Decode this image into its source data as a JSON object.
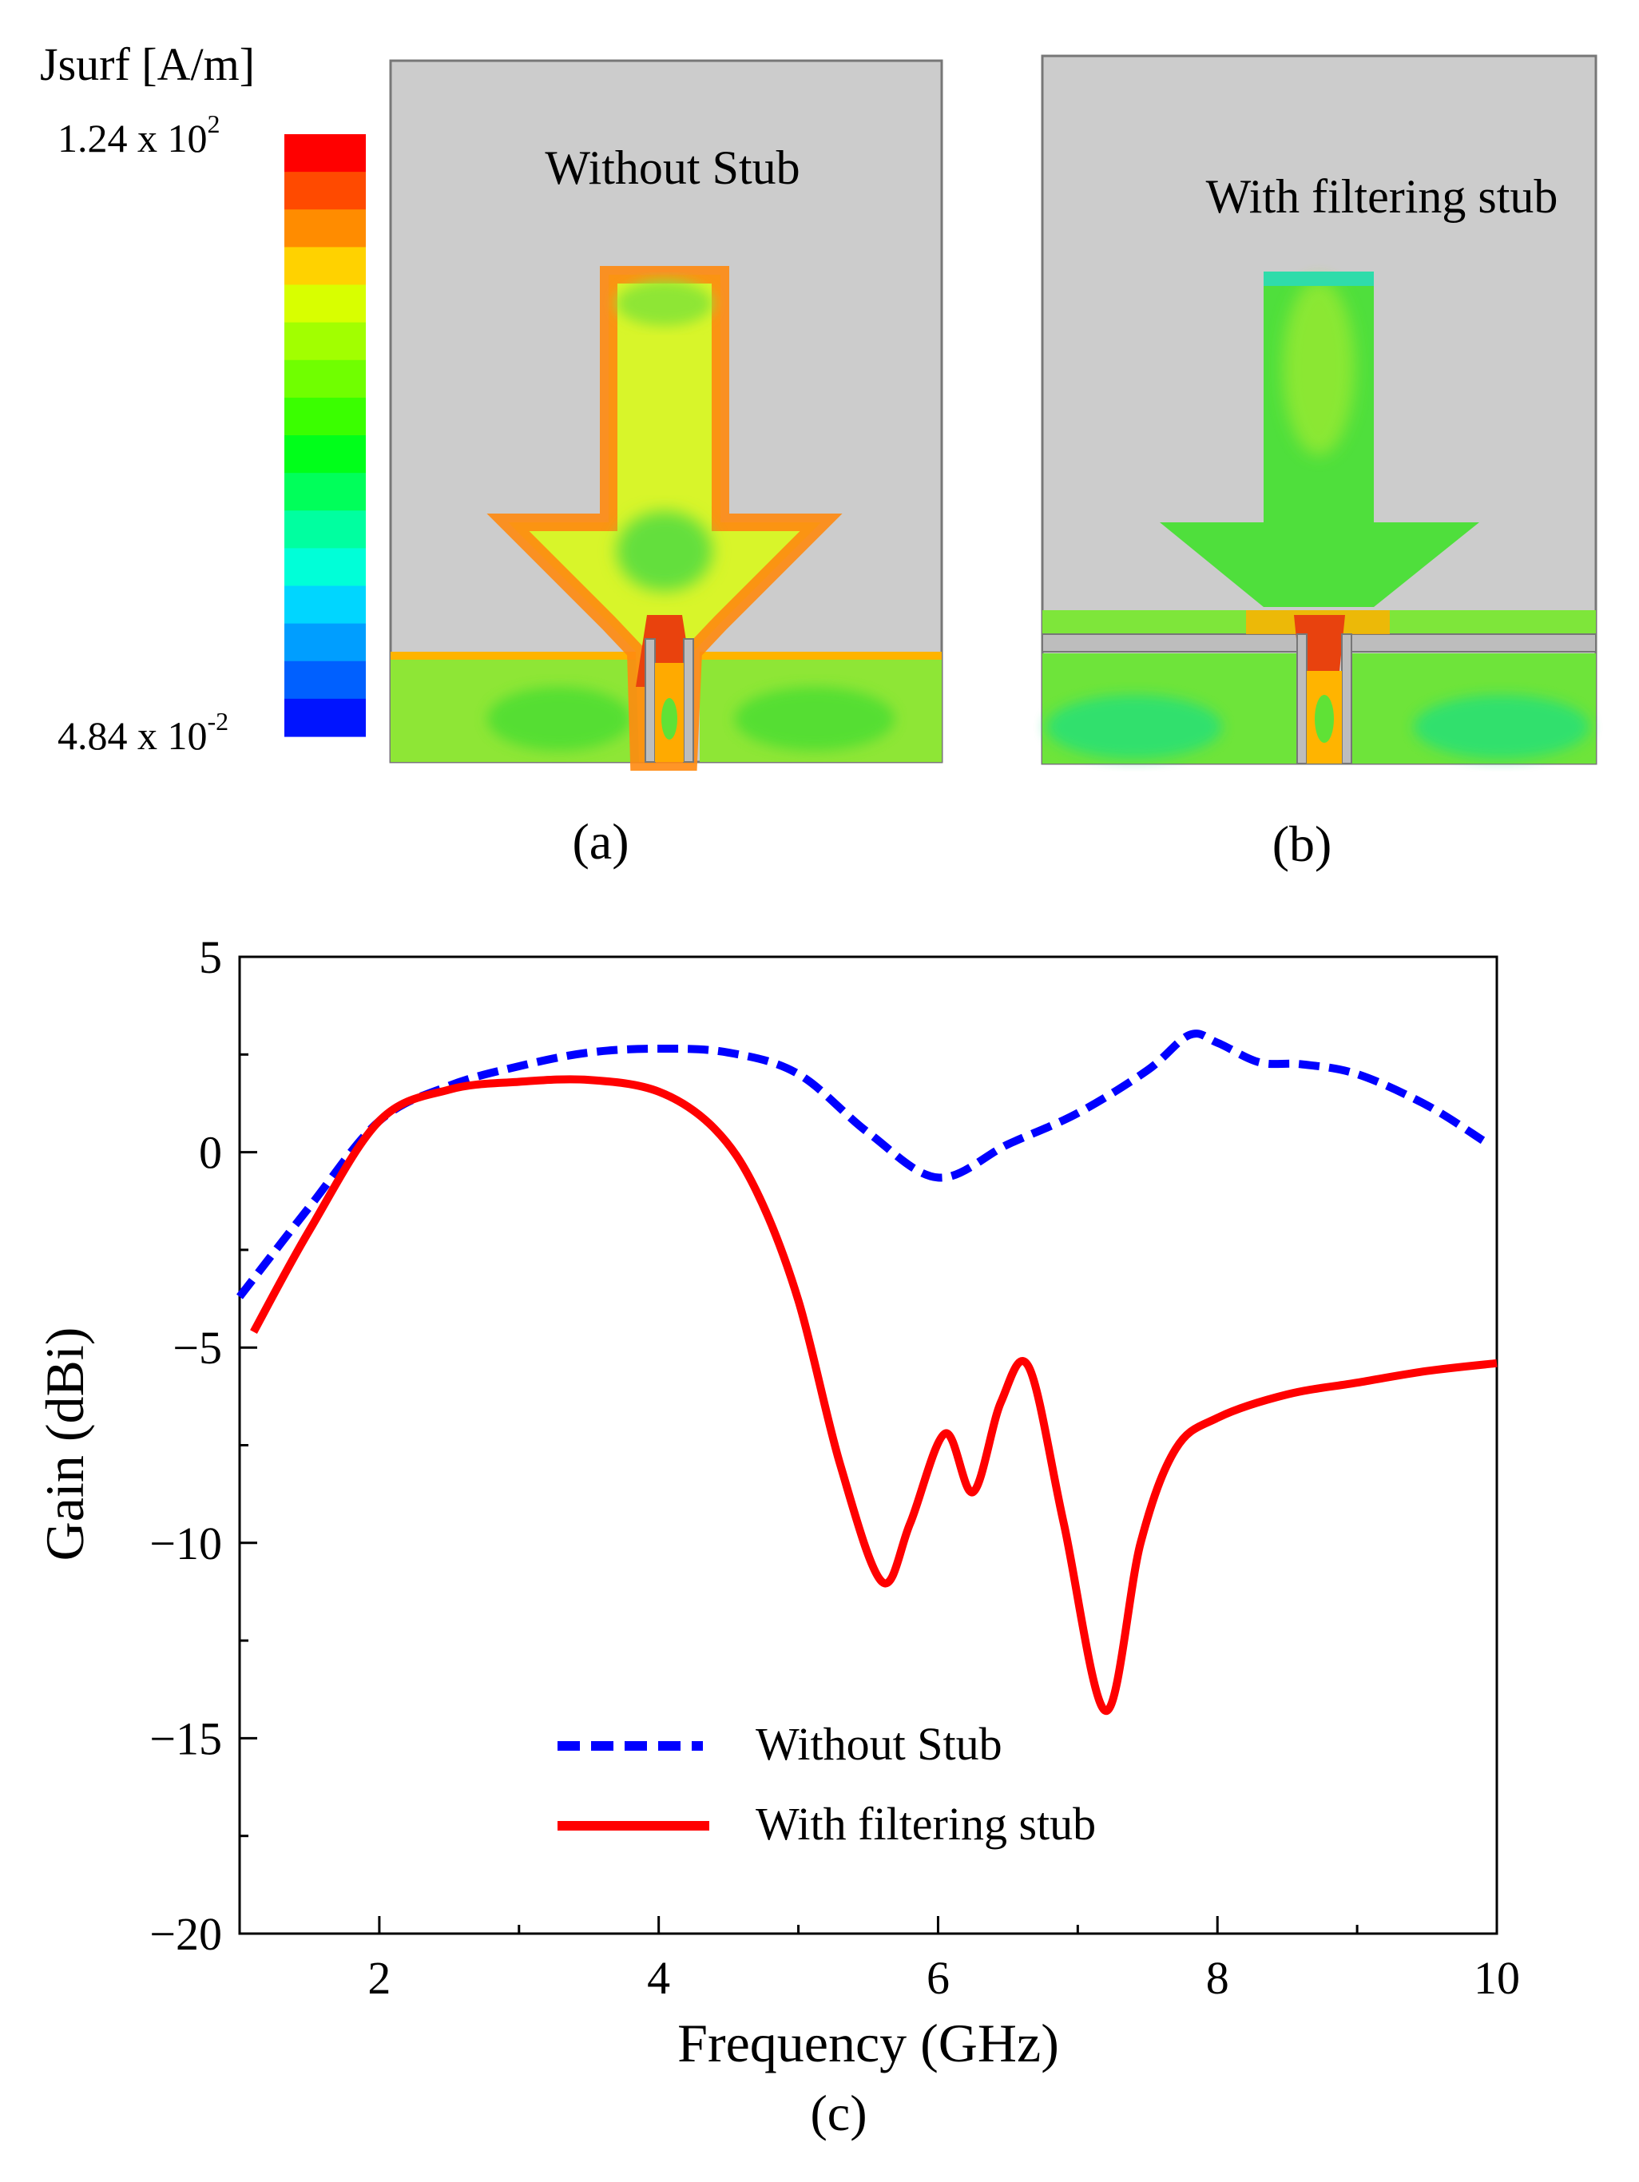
{
  "colorbar": {
    "title": "Jsurf [A/m]",
    "max_mantissa": "1.24 x 10",
    "max_exp": "2",
    "min_mantissa": "4.84 x 10",
    "min_exp": "-2",
    "colors": [
      "#ff0000",
      "#ff4a00",
      "#ff8c00",
      "#ffd200",
      "#d8ff00",
      "#a2ff00",
      "#70ff00",
      "#3aff00",
      "#00ff1a",
      "#00ff5a",
      "#00ffa0",
      "#00ffd8",
      "#00d6ff",
      "#009eff",
      "#0060ff",
      "#0014ff"
    ]
  },
  "panels": {
    "a": {
      "label": "Without Stub",
      "caption": "(a)"
    },
    "b": {
      "label": "With filtering stub",
      "caption": "(b)"
    }
  },
  "colors": {
    "substrate": "#cccccc",
    "patch": "#9eea2e",
    "edge_high": "#ff7a1a",
    "feed": "#e63b0e",
    "series_without": "#0000ff",
    "series_with": "#ff0000"
  },
  "chart_data": {
    "type": "line",
    "caption": "(c)",
    "xlabel": "Frequency (GHz)",
    "ylabel": "Gain (dBi)",
    "xlim": [
      1,
      10
    ],
    "ylim": [
      -20,
      5
    ],
    "xticks": [
      2,
      4,
      6,
      8,
      10
    ],
    "xticks_minor": [
      1,
      3,
      5,
      7,
      9
    ],
    "yticks": [
      5,
      0,
      -5,
      -10,
      -15,
      -20
    ],
    "yticks_minor": [
      2.5,
      -2.5,
      -7.5,
      -12.5,
      -17.5
    ],
    "xtick_labels": [
      "2",
      "4",
      "6",
      "8",
      "10"
    ],
    "ytick_labels": [
      "5",
      "0",
      "−5",
      "−10",
      "−15",
      "−20"
    ],
    "grid": false,
    "legend": "lower-center",
    "series": [
      {
        "name": "Without Stub",
        "style": "dashed",
        "color": "#0000ff",
        "x": [
          1.0,
          1.5,
          2.0,
          2.5,
          3.0,
          3.5,
          4.0,
          4.5,
          5.0,
          5.5,
          6.0,
          6.5,
          7.0,
          7.5,
          7.8,
          8.0,
          8.3,
          8.6,
          9.0,
          9.5,
          9.9
        ],
        "y": [
          -3.7,
          -1.4,
          0.8,
          1.7,
          2.2,
          2.55,
          2.65,
          2.55,
          2.0,
          0.5,
          -0.65,
          0.2,
          1.0,
          2.1,
          3.0,
          2.8,
          2.3,
          2.25,
          2.0,
          1.2,
          0.3
        ]
      },
      {
        "name": "With filtering stub",
        "style": "solid",
        "color": "#ff0000",
        "x": [
          1.1,
          1.5,
          2.0,
          2.5,
          3.0,
          3.5,
          4.0,
          4.4,
          4.7,
          5.0,
          5.3,
          5.6,
          5.8,
          6.05,
          6.25,
          6.45,
          6.65,
          6.9,
          7.2,
          7.45,
          7.7,
          8.0,
          8.5,
          9.0,
          9.5,
          10.0
        ],
        "y": [
          -4.6,
          -2.0,
          0.8,
          1.6,
          1.8,
          1.85,
          1.55,
          0.6,
          -1.0,
          -3.8,
          -8.0,
          -11.0,
          -9.5,
          -7.2,
          -8.7,
          -6.4,
          -5.5,
          -9.5,
          -14.3,
          -10.0,
          -7.6,
          -6.8,
          -6.2,
          -5.9,
          -5.6,
          -5.4
        ]
      }
    ]
  }
}
